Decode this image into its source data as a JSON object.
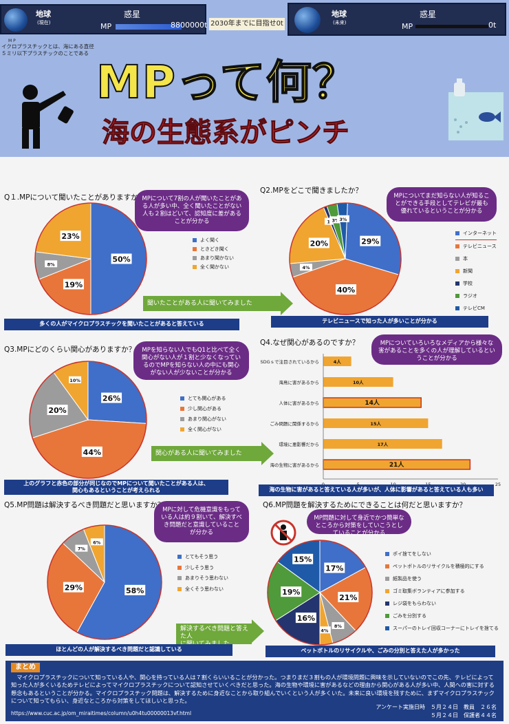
{
  "header": {
    "left_earth": "地球",
    "left_earth_sub": "(現在)",
    "left_planet": "惑星",
    "left_mp": "MP",
    "left_amount": "8800000t",
    "goal_banner": "2030年までに目指せ0t",
    "right_earth": "地球",
    "right_earth_sub": "(未来)",
    "right_planet": "惑星",
    "right_mp": "MP",
    "right_amount": "0t",
    "mp_ruby": "M P",
    "definition_line1": "イクロプラスチックとは、海にある直径",
    "definition_line2": "５ミリ以下プラスチックのことである",
    "title": "MPって何？",
    "subtitle": "海の生態系がピンチ"
  },
  "q1": {
    "title": "Q１.MPについて聞いたことがありますか？",
    "bubble": "MPについて7割の人が聞いたことがある人が多い中、全く聞いたことがない人も２割はどいて、認知度に差があることが分かる",
    "legend": [
      "よく聞く",
      "ときどき聞く",
      "あまり聞かない",
      "全く聞かない"
    ],
    "labels": [
      "50%",
      "19%",
      "8%",
      "23%"
    ],
    "banner": "多くの人がマイクロプラスチックを聞いたことがあると答えている",
    "arrow": "聞いたことがある人に聞いてみました"
  },
  "q2": {
    "title": "Q2.MPをどこで聞きましたか？",
    "bubble": "MPについてまだ知らない人が知ることができる手段としてテレビが最も優れているということが分かる",
    "legend": [
      "インターネット",
      "テレビニュース",
      "本",
      "新聞",
      "学校",
      "ラジオ",
      "テレビCM"
    ],
    "labels": [
      "29%",
      "40%",
      "4%",
      "20%",
      "1%",
      "3%",
      "3%"
    ],
    "banner": "テレビニュースで知った人が多いことが分かる"
  },
  "q3": {
    "title": "Q3.MPにどのくらい関心がありますか？",
    "bubble": "MPを知らない人でもQ1と比べて全く関心がない人が１割と少なくなっているのでMPを知らない人の中にも関心がない人が少ないことが分かる",
    "legend": [
      "とても関心がある",
      "少し関心がある",
      "あまり関心がない",
      "全く関心がない"
    ],
    "labels": [
      "26%",
      "44%",
      "20%",
      "10%"
    ],
    "banner_line1": "上のグラフと赤色の部分が同じなのでMPについて聞いたことがある人は、",
    "banner_line2": "関心もあるということが考えられる",
    "arrow": "関心がある人に聞いてみました"
  },
  "q4": {
    "title": "Q4.なぜ関心があるのですか？",
    "bubble": "MPについていろいろなメディアから様々な害があることを多くの人が理解しているということが分かる",
    "axis_ticks": [
      "0",
      "5",
      "10",
      "15",
      "20",
      "25"
    ],
    "axis_unit": "人",
    "banner": "海の生物に害があると答えている人が多いが、人体に影響があると答えている人も多い"
  },
  "q5": {
    "title": "Q5.MP問題は解決するべき問題だと思いますか？",
    "bubble": "MPに対して危機意識をもっている人は約９割いて、解決すべき問題だと意識していることが分かる",
    "legend": [
      "とてもそう思う",
      "少しそう思う",
      "あまりそう思わない",
      "全くそう思わない"
    ],
    "labels": [
      "58%",
      "29%",
      "7%",
      "6%"
    ],
    "banner": "ほとんどの人が解決するべき問題だと認識している",
    "arrow_line1": "解決するべき問題と答えた人",
    "arrow_line2": "に聞いてみました"
  },
  "q6": {
    "title": "Q6.MP問題を解決するためにできることは何だと思いますか？",
    "bubble": "MP問題に対して身近でかつ簡単なところから対策をしていこうとしていることが分かる",
    "legend": [
      "ポイ捨てをしない",
      "ペットボトルのリサイクルを積極的にする",
      "紙製品を使う",
      "ゴミ取集ボランティアに参加する",
      "レジ袋をもらわない",
      "ごみを分別する",
      "スーパーのトレイ回収コーナーにトレイを捨てる"
    ],
    "labels": [
      "17%",
      "21%",
      "8%",
      "4%",
      "16%",
      "19%",
      "15%"
    ],
    "banner": "ペットボトルのリサイクルや、ごみの分別と答えた人が多かった"
  },
  "summary": {
    "title": "まとめ",
    "text": "　マイクロプラスチックについて知っている人や、関心を持っている人は７割くらいいることが分かった。つまりまだ３割もの人が環境問題に興味を示していないのでこの先、テレビによって知った人が多くいるためテレビによってマイクロプラスチックについて認知させていくべきだと思った。海の生物や環境に害があるなどの理由から関心がある人が多い中、人間への害に対する懸念もあるということが分かる。マイクロプラスチック問題は、解決するために身近なことから取り組んでいくという人が多くいた。未来に良い環境を残すために、まずマイクロプラスチックについて知ってもらい、身近なところから対策をしてほしいと思った。",
    "url": "https://www.cuc.ac.jp/om_miraitimes/column/u0h4tu00000013vf.html",
    "survey_line1": "アンケート実施日時　５月２４日　教員　２６名",
    "survey_line2": "５月２４日　保護者４４名"
  },
  "colors": {
    "blue": "#3f6fc8",
    "orange": "#e8763a",
    "gray": "#9c9c9c",
    "amber": "#f0a530",
    "navy": "#23346e",
    "green": "#4f9a3a",
    "red_border": "#c8332b",
    "purple": "#6b2c86"
  },
  "chart_data": [
    {
      "type": "pie",
      "series": [
        {
          "values": [
            50,
            19,
            8,
            23
          ]
        }
      ],
      "categories": [
        "よく聞く",
        "ときどき聞く",
        "あまり聞かない",
        "全く聞かない"
      ]
    },
    {
      "type": "pie",
      "series": [
        {
          "values": [
            29,
            40,
            4,
            20,
            1,
            3,
            3
          ]
        }
      ],
      "categories": [
        "インターネット",
        "テレビニュース",
        "本",
        "新聞",
        "学校",
        "ラジオ",
        "テレビCM"
      ]
    },
    {
      "type": "pie",
      "series": [
        {
          "values": [
            26,
            44,
            20,
            10
          ]
        }
      ],
      "categories": [
        "とても関心がある",
        "少し関心がある",
        "あまり関心がない",
        "全く関心がない"
      ]
    },
    {
      "type": "bar",
      "categories": [
        "SDGｓで注目されているから",
        "海鳥に害があるから",
        "人体に害があるから",
        "ごみ問題に関係するから",
        "環境に悪影響だから",
        "海の生物に害があるから"
      ],
      "values": [
        4,
        10,
        14,
        15,
        17,
        21
      ],
      "value_labels": [
        "4人",
        "10人",
        "14人",
        "15人",
        "17人",
        "21人"
      ],
      "xlim": [
        0,
        25
      ]
    },
    {
      "type": "pie",
      "series": [
        {
          "values": [
            58,
            29,
            7,
            6
          ]
        }
      ],
      "categories": [
        "とてもそう思う",
        "少しそう思う",
        "あまりそう思わない",
        "全くそう思わない"
      ]
    },
    {
      "type": "pie",
      "series": [
        {
          "values": [
            17,
            21,
            8,
            4,
            16,
            19,
            15
          ]
        }
      ],
      "categories": [
        "ポイ捨てをしない",
        "ペットボトルのリサイクルを積極的にする",
        "紙製品を使う",
        "ゴミ取集ボランティアに参加する",
        "レジ袋をもらわない",
        "ごみを分別する",
        "スーパーのトレイ回収コーナーにトレイを捨てる"
      ]
    }
  ]
}
